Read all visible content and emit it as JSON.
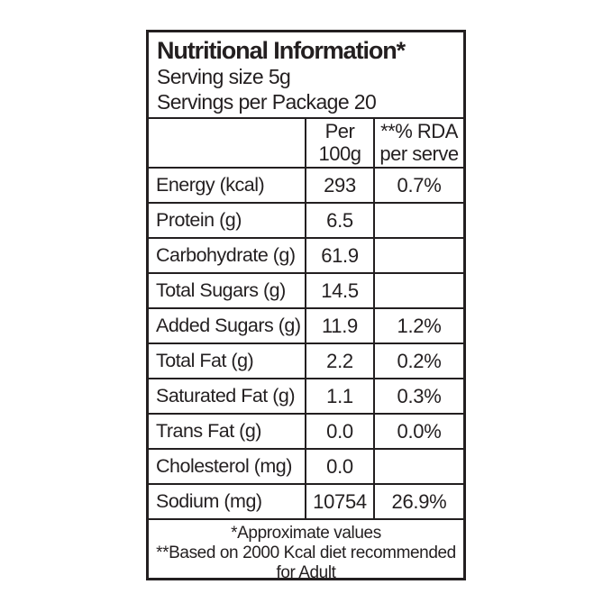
{
  "colors": {
    "text": "#231f20",
    "border": "#231f20",
    "background": "#ffffff"
  },
  "label": {
    "title": "Nutritional Information*",
    "serving_size": "Serving size 5g",
    "servings_per_package": "Servings per Package 20",
    "columns": {
      "nutrient": "",
      "per_100g": [
        "Per",
        "100g"
      ],
      "rda": [
        "**% RDA",
        "per serve"
      ]
    },
    "rows": [
      {
        "nutrient": "Energy (kcal)",
        "per_100g": "293",
        "rda": "0.7%"
      },
      {
        "nutrient": "Protein (g)",
        "per_100g": "6.5",
        "rda": ""
      },
      {
        "nutrient": "Carbohydrate (g)",
        "per_100g": "61.9",
        "rda": ""
      },
      {
        "nutrient": "Total Sugars (g)",
        "per_100g": "14.5",
        "rda": ""
      },
      {
        "nutrient": "Added Sugars (g)",
        "per_100g": "11.9",
        "rda": "1.2%"
      },
      {
        "nutrient": "Total Fat (g)",
        "per_100g": "2.2",
        "rda": "0.2%"
      },
      {
        "nutrient": "Saturated Fat (g)",
        "per_100g": "1.1",
        "rda": "0.3%"
      },
      {
        "nutrient": "Trans Fat (g)",
        "per_100g": "0.0",
        "rda": "0.0%"
      },
      {
        "nutrient": "Cholesterol (mg)",
        "per_100g": "0.0",
        "rda": ""
      },
      {
        "nutrient": "Sodium (mg)",
        "per_100g": "10754",
        "rda": "26.9%"
      }
    ],
    "footnotes": [
      "*Approximate values",
      "**Based on 2000 Kcal diet recommended",
      "for Adult"
    ]
  }
}
